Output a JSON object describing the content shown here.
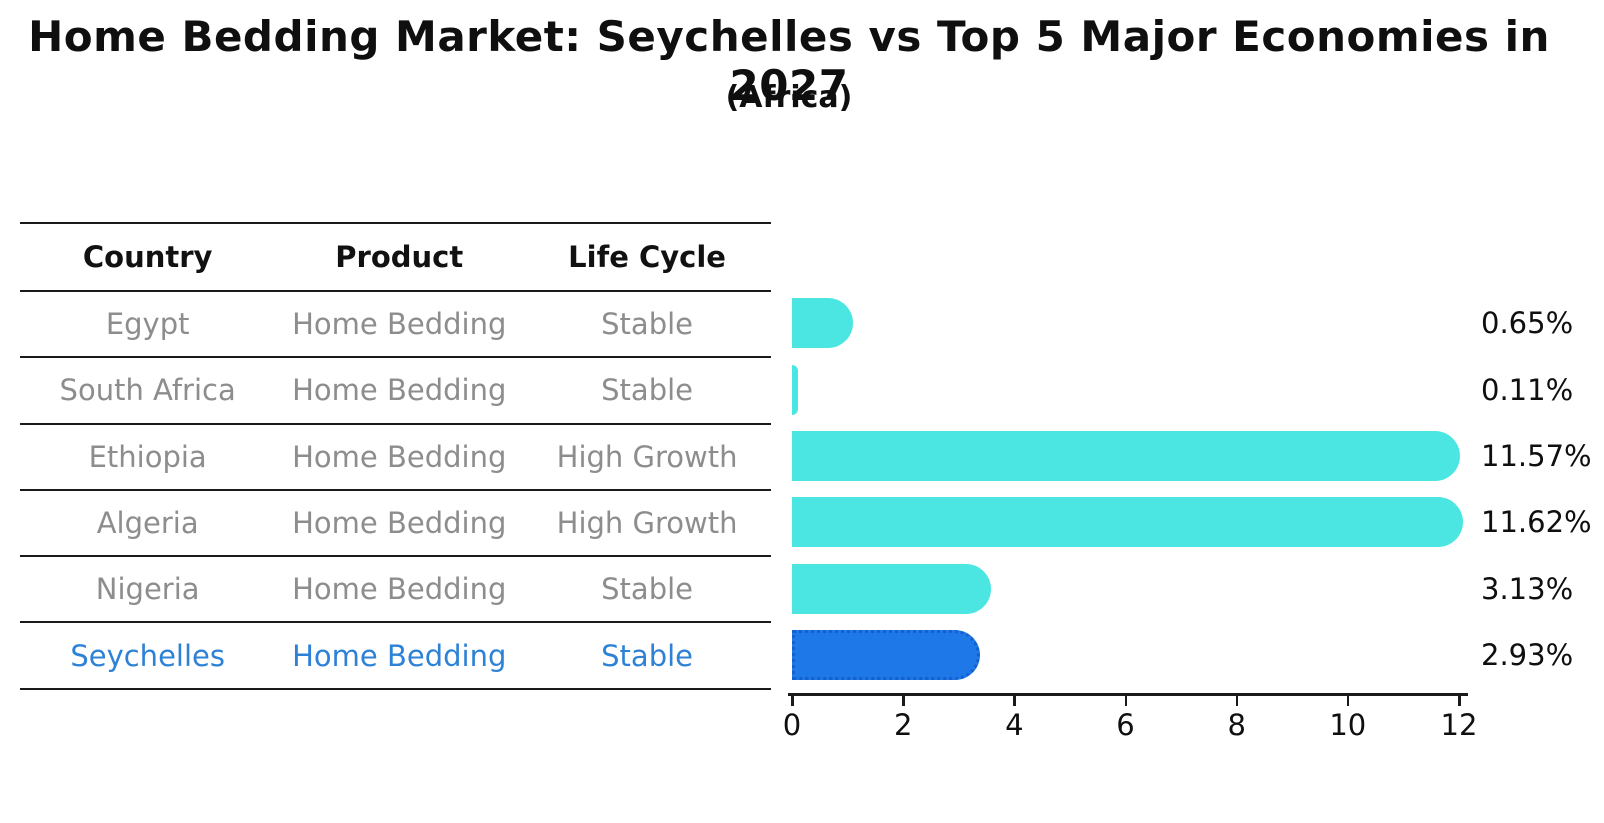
{
  "title": "Home Bedding Market: Seychelles vs Top 5 Major Economies in 2027",
  "subtitle": "(Africa)",
  "table": {
    "headers": {
      "country": "Country",
      "product": "Product",
      "life_cycle": "Life Cycle"
    },
    "rows": [
      {
        "country": "Egypt",
        "product": "Home Bedding",
        "life_cycle": "Stable"
      },
      {
        "country": "South Africa",
        "product": "Home Bedding",
        "life_cycle": "Stable"
      },
      {
        "country": "Ethiopia",
        "product": "Home Bedding",
        "life_cycle": "High Growth"
      },
      {
        "country": "Algeria",
        "product": "Home Bedding",
        "life_cycle": "High Growth"
      },
      {
        "country": "Nigeria",
        "product": "Home Bedding",
        "life_cycle": "Stable"
      },
      {
        "country": "Seychelles",
        "product": "Home Bedding",
        "life_cycle": "Stable"
      }
    ]
  },
  "chart_data": {
    "type": "bar",
    "orientation": "horizontal",
    "title": "Home Bedding Market: Seychelles vs Top 5 Major Economies in 2027",
    "subtitle": "(Africa)",
    "categories": [
      "Egypt",
      "South Africa",
      "Ethiopia",
      "Algeria",
      "Nigeria",
      "Seychelles"
    ],
    "values": [
      0.65,
      0.11,
      11.57,
      11.62,
      3.13,
      2.93
    ],
    "value_labels": [
      "0.65%",
      "0.11%",
      "11.57%",
      "11.62%",
      "3.13%",
      "2.93%"
    ],
    "highlight_category": "Seychelles",
    "highlight_index": 5,
    "xlabel": "",
    "ylabel": "",
    "xlim": [
      0,
      12
    ],
    "xticks": [
      0,
      2,
      4,
      6,
      8,
      10,
      12
    ],
    "grid": false,
    "legend": false
  },
  "colors": {
    "bar": "#4BE6E1",
    "highlight_bar": "#1E78E8",
    "highlight_bar_border": "#1560CC",
    "highlight_text": "#2E82D6",
    "row_text": "#8D8D8D",
    "heading_text": "#0F0F0F",
    "axis": "#1A1A1A"
  }
}
